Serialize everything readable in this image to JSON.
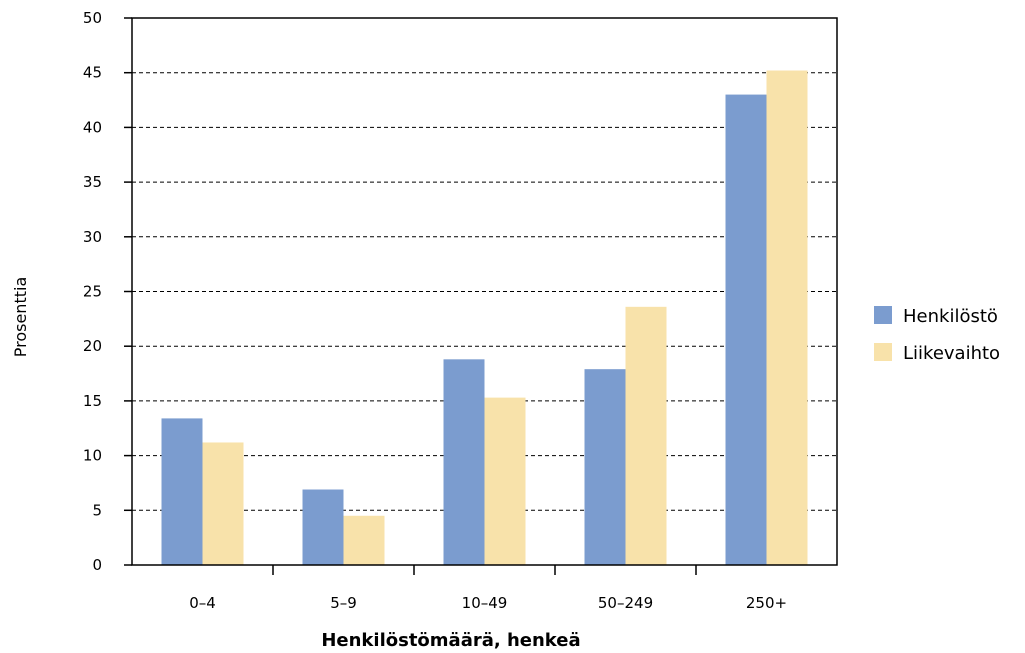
{
  "chart_data": {
    "type": "bar",
    "categories": [
      "0–4",
      "5–9",
      "10–49",
      "50–249",
      "250+"
    ],
    "series": [
      {
        "name": "Henkilöstö",
        "color": "#7b9ccf",
        "values": [
          13.4,
          6.9,
          18.8,
          17.9,
          43.0
        ]
      },
      {
        "name": "Liikevaihto",
        "color": "#f8e2aa",
        "values": [
          11.2,
          4.5,
          15.3,
          23.6,
          45.2
        ]
      }
    ],
    "title": "",
    "xlabel": "Henkilöstömäärä, henkeä",
    "ylabel": "Prosenttia",
    "ylim": [
      0,
      50
    ],
    "yticks": [
      "0",
      "5",
      "10",
      "15",
      "20",
      "25",
      "30",
      "35",
      "40",
      "45",
      "50"
    ],
    "grid": "horizontal dashed",
    "legend": "right"
  }
}
